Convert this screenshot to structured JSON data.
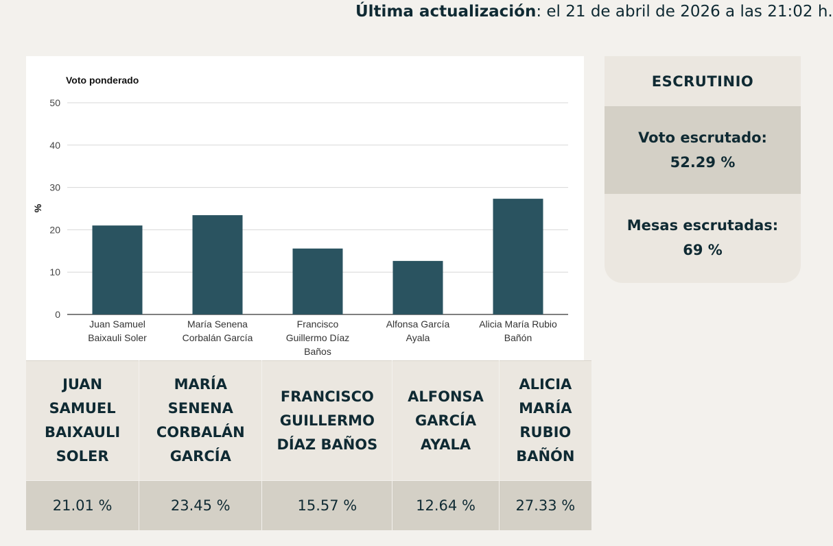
{
  "update": {
    "label": "Última actualización",
    "text": ": el 21 de abril de 2026 a las 21:02 h."
  },
  "colors": {
    "bar": "#2a5360",
    "grid": "#d7d7d7",
    "axis": "#333333"
  },
  "chart_data": {
    "type": "bar",
    "title": "Voto ponderado",
    "ylabel": "%",
    "xlabel": "",
    "ylim": [
      0,
      50
    ],
    "yticks": [
      0,
      10,
      20,
      30,
      40,
      50
    ],
    "grid": true,
    "categories": [
      "Juan Samuel Baixauli Soler",
      "María Senena Corbalán García",
      "Francisco Guillermo Díaz Baños",
      "Alfonsa García Ayala",
      "Alicia María Rubio Bañón"
    ],
    "category_lines": [
      [
        "Juan Samuel",
        "Baixauli Soler"
      ],
      [
        "María Senena",
        "Corbalán García"
      ],
      [
        "Francisco",
        "Guillermo Díaz",
        "Baños"
      ],
      [
        "Alfonsa García",
        "Ayala"
      ],
      [
        "Alicia María Rubio",
        "Bañón"
      ]
    ],
    "values": [
      21.01,
      23.45,
      15.57,
      12.64,
      27.33
    ]
  },
  "scrutiny": {
    "title": "ESCRUTINIO",
    "vote_label": "Voto escrutado:",
    "vote_value": "52.29 %",
    "tables_label": "Mesas escrutadas:",
    "tables_value": "69 %"
  },
  "results": [
    {
      "name": "Juan Samuel Baixauli Soler",
      "value": "21.01 %"
    },
    {
      "name": "María Senena Corbalán García",
      "value": "23.45 %"
    },
    {
      "name": "Francisco Guillermo Díaz Baños",
      "value": "15.57 %"
    },
    {
      "name": "Alfonsa García Ayala",
      "value": "12.64 %"
    },
    {
      "name": "Alicia María Rubio Bañón",
      "value": "27.33 %"
    }
  ]
}
